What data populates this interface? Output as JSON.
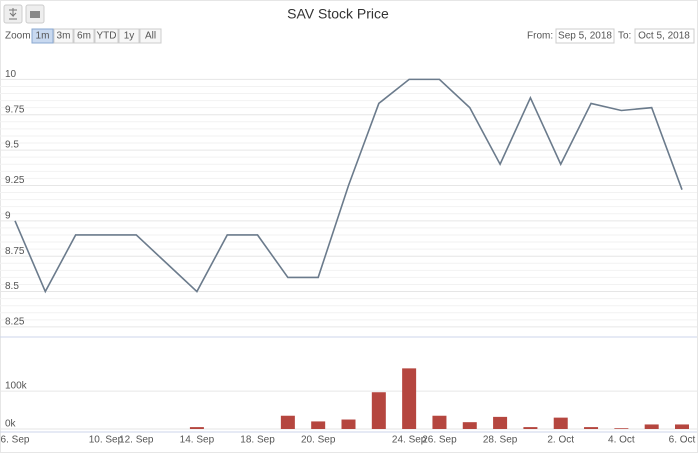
{
  "title": "SAV Stock Price",
  "toolbar": {
    "zoom_label": "Zoom",
    "buttons": [
      "1m",
      "3m",
      "6m",
      "YTD",
      "1y",
      "All"
    ],
    "selected": 0,
    "from_label": "From:",
    "from": "Sep 5, 2018",
    "to_label": "To:",
    "to": "Oct 5, 2018"
  },
  "chart_data": [
    {
      "type": "line",
      "series": [
        {
          "color": "#6b7b8c",
          "values": [
            9.0,
            8.5,
            8.9,
            8.9,
            8.9,
            8.7,
            8.5,
            8.9,
            8.9,
            8.6,
            8.6,
            9.25,
            9.83,
            10.0,
            10.0,
            9.8,
            9.4,
            9.87,
            9.4,
            9.83,
            9.78,
            9.8,
            9.22
          ]
        }
      ],
      "ylim": [
        8.2,
        10.25
      ],
      "yticks": [
        8.25,
        8.5,
        8.75,
        9,
        9.25,
        9.5,
        9.75,
        10
      ],
      "grid": true
    },
    {
      "type": "bar",
      "categories": [
        "6. Sep",
        null,
        null,
        "10. Sep",
        "12. Sep",
        null,
        "14. Sep",
        null,
        "18. Sep",
        null,
        "20. Sep",
        null,
        null,
        "24. Sep",
        "26. Sep",
        null,
        "28. Sep",
        null,
        "2. Oct",
        null,
        "4. Oct",
        null,
        "6. Oct"
      ],
      "values": [
        0,
        0,
        0,
        0,
        0,
        0,
        5000,
        0,
        0,
        35000,
        20000,
        25000,
        97000,
        160000,
        35000,
        18000,
        32000,
        5000,
        30000,
        5000,
        2000,
        12000,
        12000
      ],
      "color": "#b5463f",
      "ylim": [
        0,
        190000
      ],
      "yticks": [
        {
          "value": 0,
          "label": "0k"
        },
        {
          "value": 100000,
          "label": "100k"
        }
      ],
      "grid": true
    }
  ]
}
